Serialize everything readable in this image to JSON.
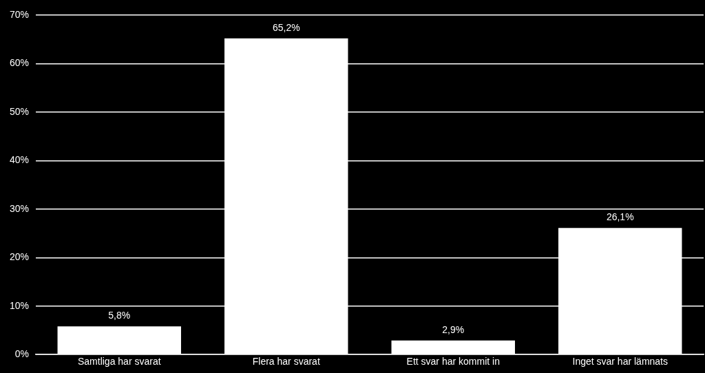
{
  "chart_data": {
    "type": "bar",
    "categories": [
      "Samtliga har svarat",
      "Flera har svarat",
      "Ett svar har kommit in",
      "Inget svar har lämnats"
    ],
    "values": [
      5.8,
      65.2,
      2.9,
      26.1
    ],
    "value_labels": [
      "5,8%",
      "65,2%",
      "2,9%",
      "26,1%"
    ],
    "color": "#ffffff",
    "ylim": [
      0,
      70
    ],
    "yticks": [
      {
        "value": 0,
        "label": "0%"
      },
      {
        "value": 10,
        "label": "10%"
      },
      {
        "value": 20,
        "label": "20%"
      },
      {
        "value": 30,
        "label": "30%"
      },
      {
        "value": 40,
        "label": "40%"
      },
      {
        "value": 50,
        "label": "50%"
      },
      {
        "value": 60,
        "label": "60%"
      },
      {
        "value": 70,
        "label": "70%"
      }
    ],
    "grid": "y",
    "legend": false
  }
}
